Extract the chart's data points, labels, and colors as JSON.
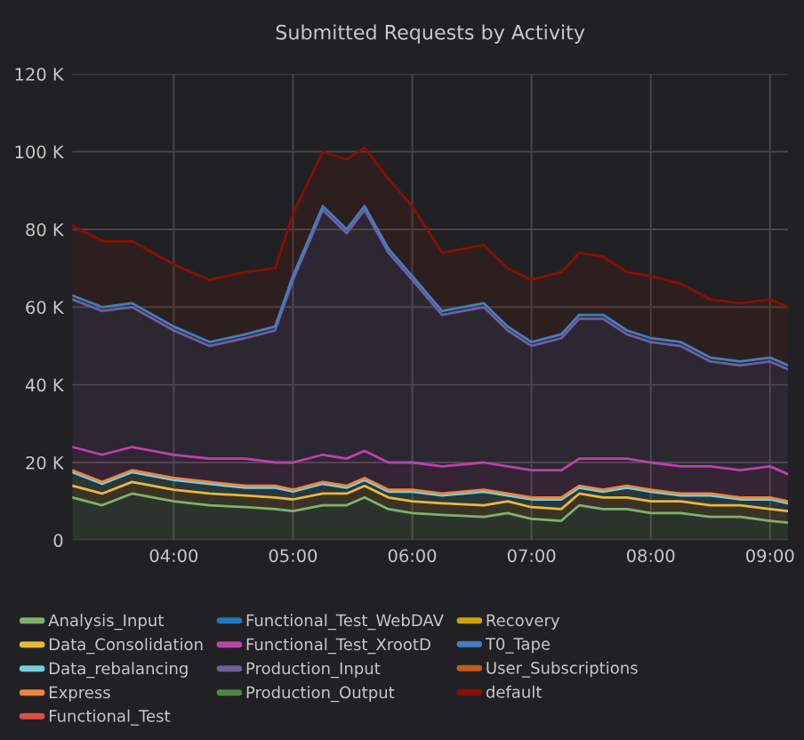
{
  "chart_data": {
    "type": "area",
    "stacked": true,
    "title": "Submitted Requests by Activity",
    "x": [
      3.15,
      3.4,
      3.65,
      4.0,
      4.3,
      4.6,
      4.85,
      5.0,
      5.25,
      5.45,
      5.6,
      5.8,
      6.0,
      6.25,
      6.6,
      6.8,
      7.0,
      7.25,
      7.4,
      7.6,
      7.8,
      8.0,
      8.25,
      8.5,
      8.75,
      9.0,
      9.15
    ],
    "xlim": [
      3.15,
      9.15
    ],
    "xticks": [
      {
        "value": 4,
        "label": "04:00"
      },
      {
        "value": 5,
        "label": "05:00"
      },
      {
        "value": 6,
        "label": "06:00"
      },
      {
        "value": 7,
        "label": "07:00"
      },
      {
        "value": 8,
        "label": "08:00"
      },
      {
        "value": 9,
        "label": "09:00"
      }
    ],
    "ylim": [
      0,
      120
    ],
    "yticks": [
      {
        "value": 0,
        "label": "0"
      },
      {
        "value": 20,
        "label": "20 K"
      },
      {
        "value": 40,
        "label": "40 K"
      },
      {
        "value": 60,
        "label": "60 K"
      },
      {
        "value": 80,
        "label": "80 K"
      },
      {
        "value": 100,
        "label": "100 K"
      },
      {
        "value": 120,
        "label": "120 K"
      }
    ],
    "grid": true,
    "legend": "bottom",
    "series": [
      {
        "name": "Analysis_Input",
        "color": "#7eb26d",
        "values": [
          11,
          9,
          12,
          10,
          9,
          8.5,
          8,
          7.5,
          9,
          9,
          11,
          8,
          7,
          6.5,
          6,
          7,
          5.5,
          5,
          9,
          8,
          8,
          7,
          7,
          6,
          6,
          5,
          4.5
        ]
      },
      {
        "name": "Data_Consolidation",
        "color": "#eab839",
        "values": [
          3,
          3,
          3,
          3,
          3,
          3,
          3,
          3,
          3,
          3,
          3,
          3,
          3,
          3,
          3,
          3,
          3,
          3,
          3,
          3,
          3,
          3,
          3,
          3,
          3,
          3,
          3
        ]
      },
      {
        "name": "Data_rebalancing",
        "color": "#6ed0e0",
        "values": [
          3.5,
          2.5,
          2.5,
          2.5,
          2.5,
          2,
          2.5,
          2,
          2.5,
          1.5,
          1.5,
          1.5,
          2.5,
          2,
          3.5,
          1.5,
          2,
          2.5,
          1.5,
          1.5,
          2.5,
          2.5,
          1.5,
          2.5,
          1.5,
          2.5,
          2
        ]
      },
      {
        "name": "Express",
        "color": "#ef843c",
        "values": [
          0.5,
          0.5,
          0.5,
          0.5,
          0.5,
          0.5,
          0.5,
          0.5,
          0.5,
          0.5,
          0.5,
          0.5,
          0.5,
          0.5,
          0.5,
          0.5,
          0.5,
          0.5,
          0.5,
          0.5,
          0.5,
          0.5,
          0.5,
          0.5,
          0.5,
          0.5,
          0.5
        ]
      },
      {
        "name": "Functional_Test",
        "color": "#e24d42",
        "values": [
          null,
          null,
          null,
          null,
          null,
          null,
          null,
          null,
          null,
          null,
          null,
          null,
          null,
          null,
          null,
          null,
          null,
          null,
          null,
          null,
          null,
          null,
          null,
          null,
          null,
          null,
          null
        ]
      },
      {
        "name": "Functional_Test_WebDAV",
        "color": "#1f78c1",
        "values": [
          null,
          null,
          null,
          null,
          null,
          null,
          null,
          null,
          null,
          null,
          null,
          null,
          null,
          null,
          null,
          null,
          null,
          null,
          null,
          null,
          null,
          null,
          null,
          null,
          null,
          null,
          null
        ]
      },
      {
        "name": "Functional_Test_XrootD",
        "color": "#ba43a9",
        "values": [
          6,
          7,
          6,
          6,
          6,
          7,
          6,
          7,
          7,
          7,
          7,
          7,
          7,
          7,
          7,
          7,
          7,
          7,
          7,
          8,
          7,
          7,
          7,
          7,
          7,
          8,
          7
        ]
      },
      {
        "name": "Production_Input",
        "color": "#705da0",
        "values": [
          38,
          37,
          36,
          32,
          29,
          31,
          34,
          47,
          63,
          58,
          62,
          54,
          47,
          39,
          40,
          35,
          32,
          34,
          36,
          36,
          32,
          31,
          31,
          27,
          27,
          27,
          27
        ]
      },
      {
        "name": "Production_Output",
        "color": "#508642",
        "values": [
          null,
          null,
          null,
          null,
          null,
          null,
          null,
          null,
          null,
          null,
          null,
          null,
          null,
          null,
          null,
          null,
          null,
          null,
          null,
          null,
          null,
          null,
          null,
          null,
          null,
          null,
          null
        ]
      },
      {
        "name": "Recovery",
        "color": "#cca300",
        "values": [
          null,
          null,
          null,
          null,
          null,
          null,
          null,
          null,
          null,
          null,
          null,
          null,
          null,
          null,
          null,
          null,
          null,
          null,
          null,
          null,
          null,
          null,
          null,
          null,
          null,
          null,
          null
        ]
      },
      {
        "name": "T0_Tape",
        "color": "#447ebc",
        "values": [
          1,
          1,
          1,
          1,
          1,
          1,
          1,
          1,
          1,
          1,
          1,
          1,
          1,
          1,
          1,
          1,
          1,
          1,
          1,
          1,
          1,
          1,
          1,
          1,
          1,
          1,
          1
        ]
      },
      {
        "name": "User_Subscriptions",
        "color": "#c15c17",
        "values": [
          null,
          null,
          null,
          null,
          null,
          null,
          null,
          null,
          null,
          null,
          null,
          null,
          null,
          null,
          null,
          null,
          null,
          null,
          null,
          null,
          null,
          null,
          null,
          null,
          null,
          null,
          null
        ]
      },
      {
        "name": "default",
        "color": "#890f02",
        "values": [
          18,
          17,
          16,
          16,
          16,
          16,
          15,
          16,
          14,
          18,
          15,
          18,
          18,
          15,
          15,
          15,
          16,
          16,
          16,
          15,
          15,
          16,
          15,
          15,
          15,
          15,
          15
        ]
      }
    ]
  }
}
